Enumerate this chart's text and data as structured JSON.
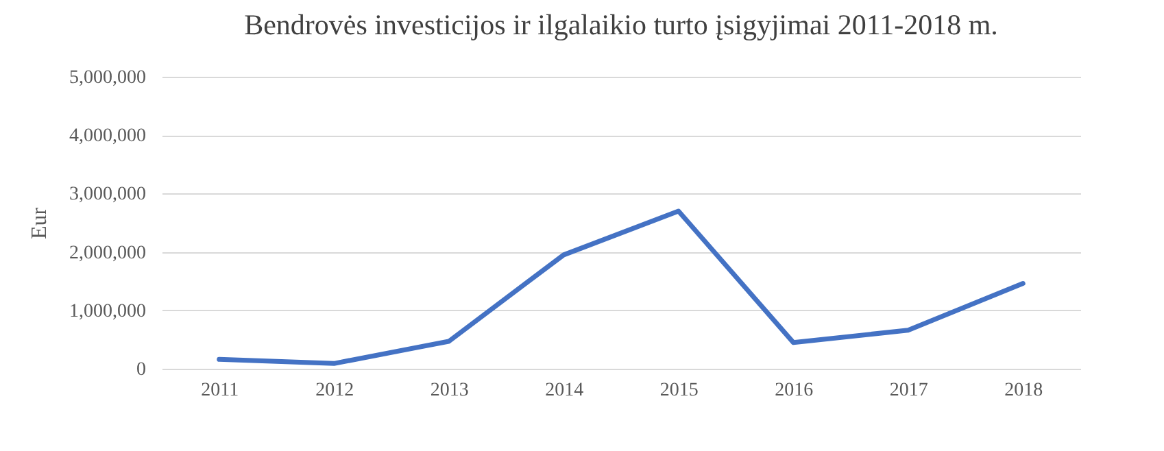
{
  "chart_data": {
    "type": "line",
    "title": "Bendrovės investicijos ir ilgalaikio turto įsigyjimai 2011-2018 m.",
    "ylabel": "Eur",
    "categories": [
      "2011",
      "2012",
      "2013",
      "2014",
      "2015",
      "2016",
      "2017",
      "2018"
    ],
    "series": [
      {
        "color": "#4472c4",
        "values": [
          160000,
          90000,
          470000,
          1950000,
          2700000,
          450000,
          660000,
          1460000
        ]
      }
    ],
    "ylim": [
      0,
      5000000
    ],
    "yticks": [
      0,
      {
        "value": 1000000,
        "label": "1,000,000"
      },
      {
        "value": 2000000,
        "label": "2,000,000"
      },
      {
        "value": 3000000,
        "label": "3,000,000"
      },
      {
        "value": 4000000,
        "label": "4,000,000"
      },
      {
        "value": 5000000,
        "label": "5,000,000"
      }
    ],
    "grid": "y",
    "marker": "none",
    "line_style": "solid"
  }
}
